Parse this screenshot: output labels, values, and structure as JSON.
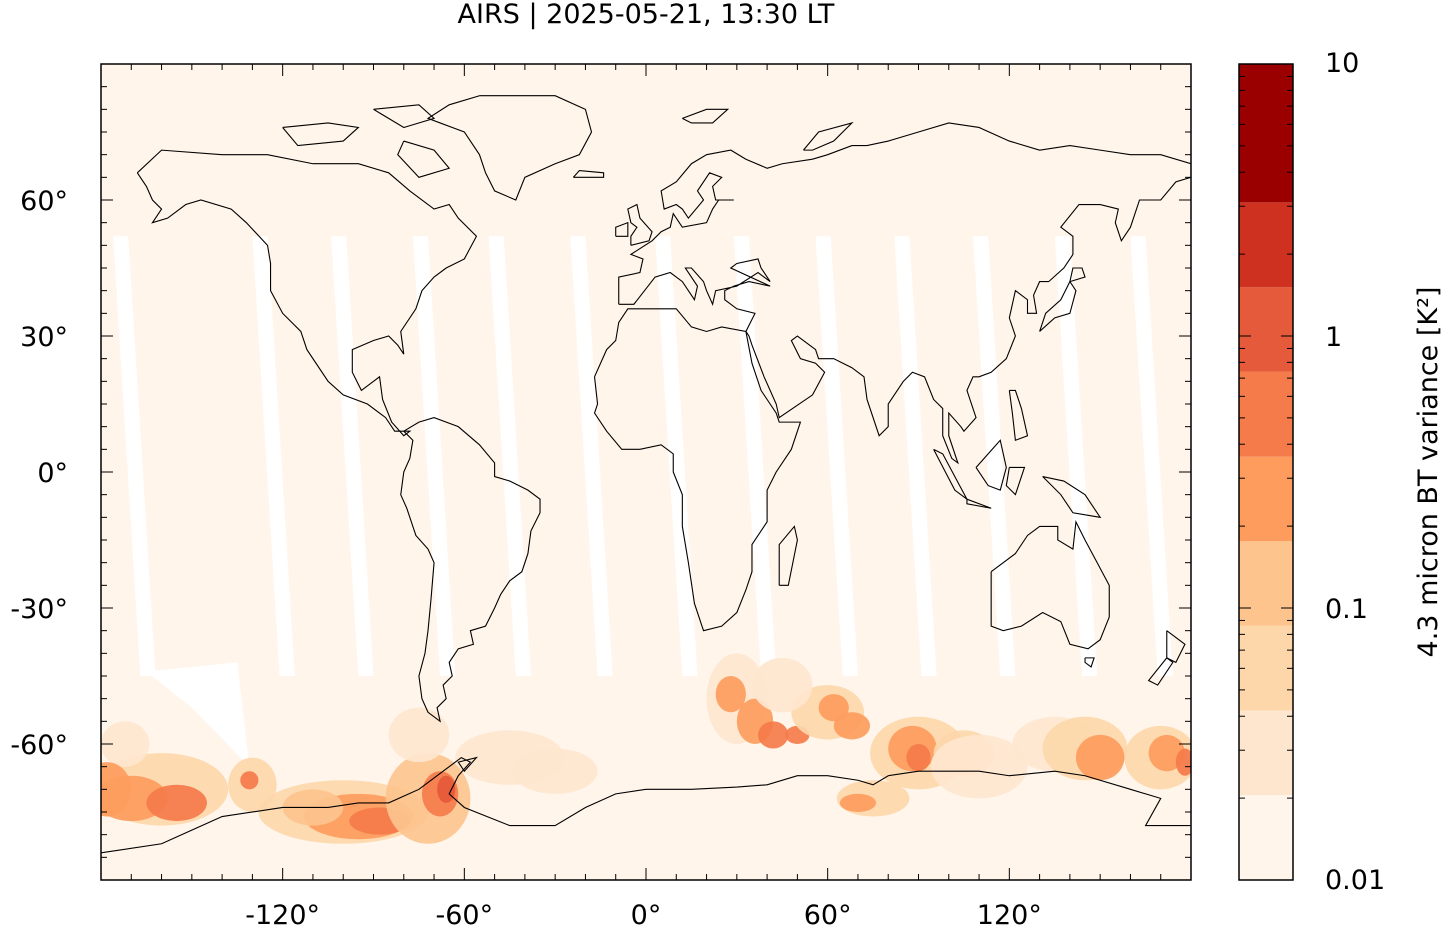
{
  "title": "AIRS | 2025-05-21, 13:30 LT",
  "map": {
    "lon_range": [
      -180,
      180
    ],
    "lat_range": [
      -90,
      90
    ],
    "x_ticks": [
      {
        "lon": -120,
        "label": "-120°"
      },
      {
        "lon": -60,
        "label": "-60°"
      },
      {
        "lon": 0,
        "label": "0°"
      },
      {
        "lon": 60,
        "label": "60°"
      },
      {
        "lon": 120,
        "label": "120°"
      }
    ],
    "y_ticks": [
      {
        "lat": 60,
        "label": "60°"
      },
      {
        "lat": 30,
        "label": "30°"
      },
      {
        "lat": 0,
        "label": "0°"
      },
      {
        "lat": -30,
        "label": "-30°"
      },
      {
        "lat": -60,
        "label": "-60°"
      }
    ],
    "background_color": "#fff5eb",
    "no_data_color": "#ffffff",
    "coastline_color": "#000000"
  },
  "colorbar": {
    "label": "4.3 micron BT variance [K²]",
    "scale": "log",
    "range": [
      0.01,
      10
    ],
    "tick_labels": [
      "10",
      "1",
      "0.1",
      "0.01"
    ],
    "tick_values": [
      10,
      1,
      0.1,
      0.01
    ],
    "levels": [
      0.01,
      0.0205,
      0.042,
      0.086,
      0.176,
      0.36,
      0.74,
      1.51,
      3.1,
      10
    ],
    "colors": [
      "#fff5eb",
      "#fee6ce",
      "#fdd7aa",
      "#fdc48e",
      "#fd9c5d",
      "#f57b4b",
      "#e55a3a",
      "#cf3120",
      "#9b0000"
    ]
  }
}
